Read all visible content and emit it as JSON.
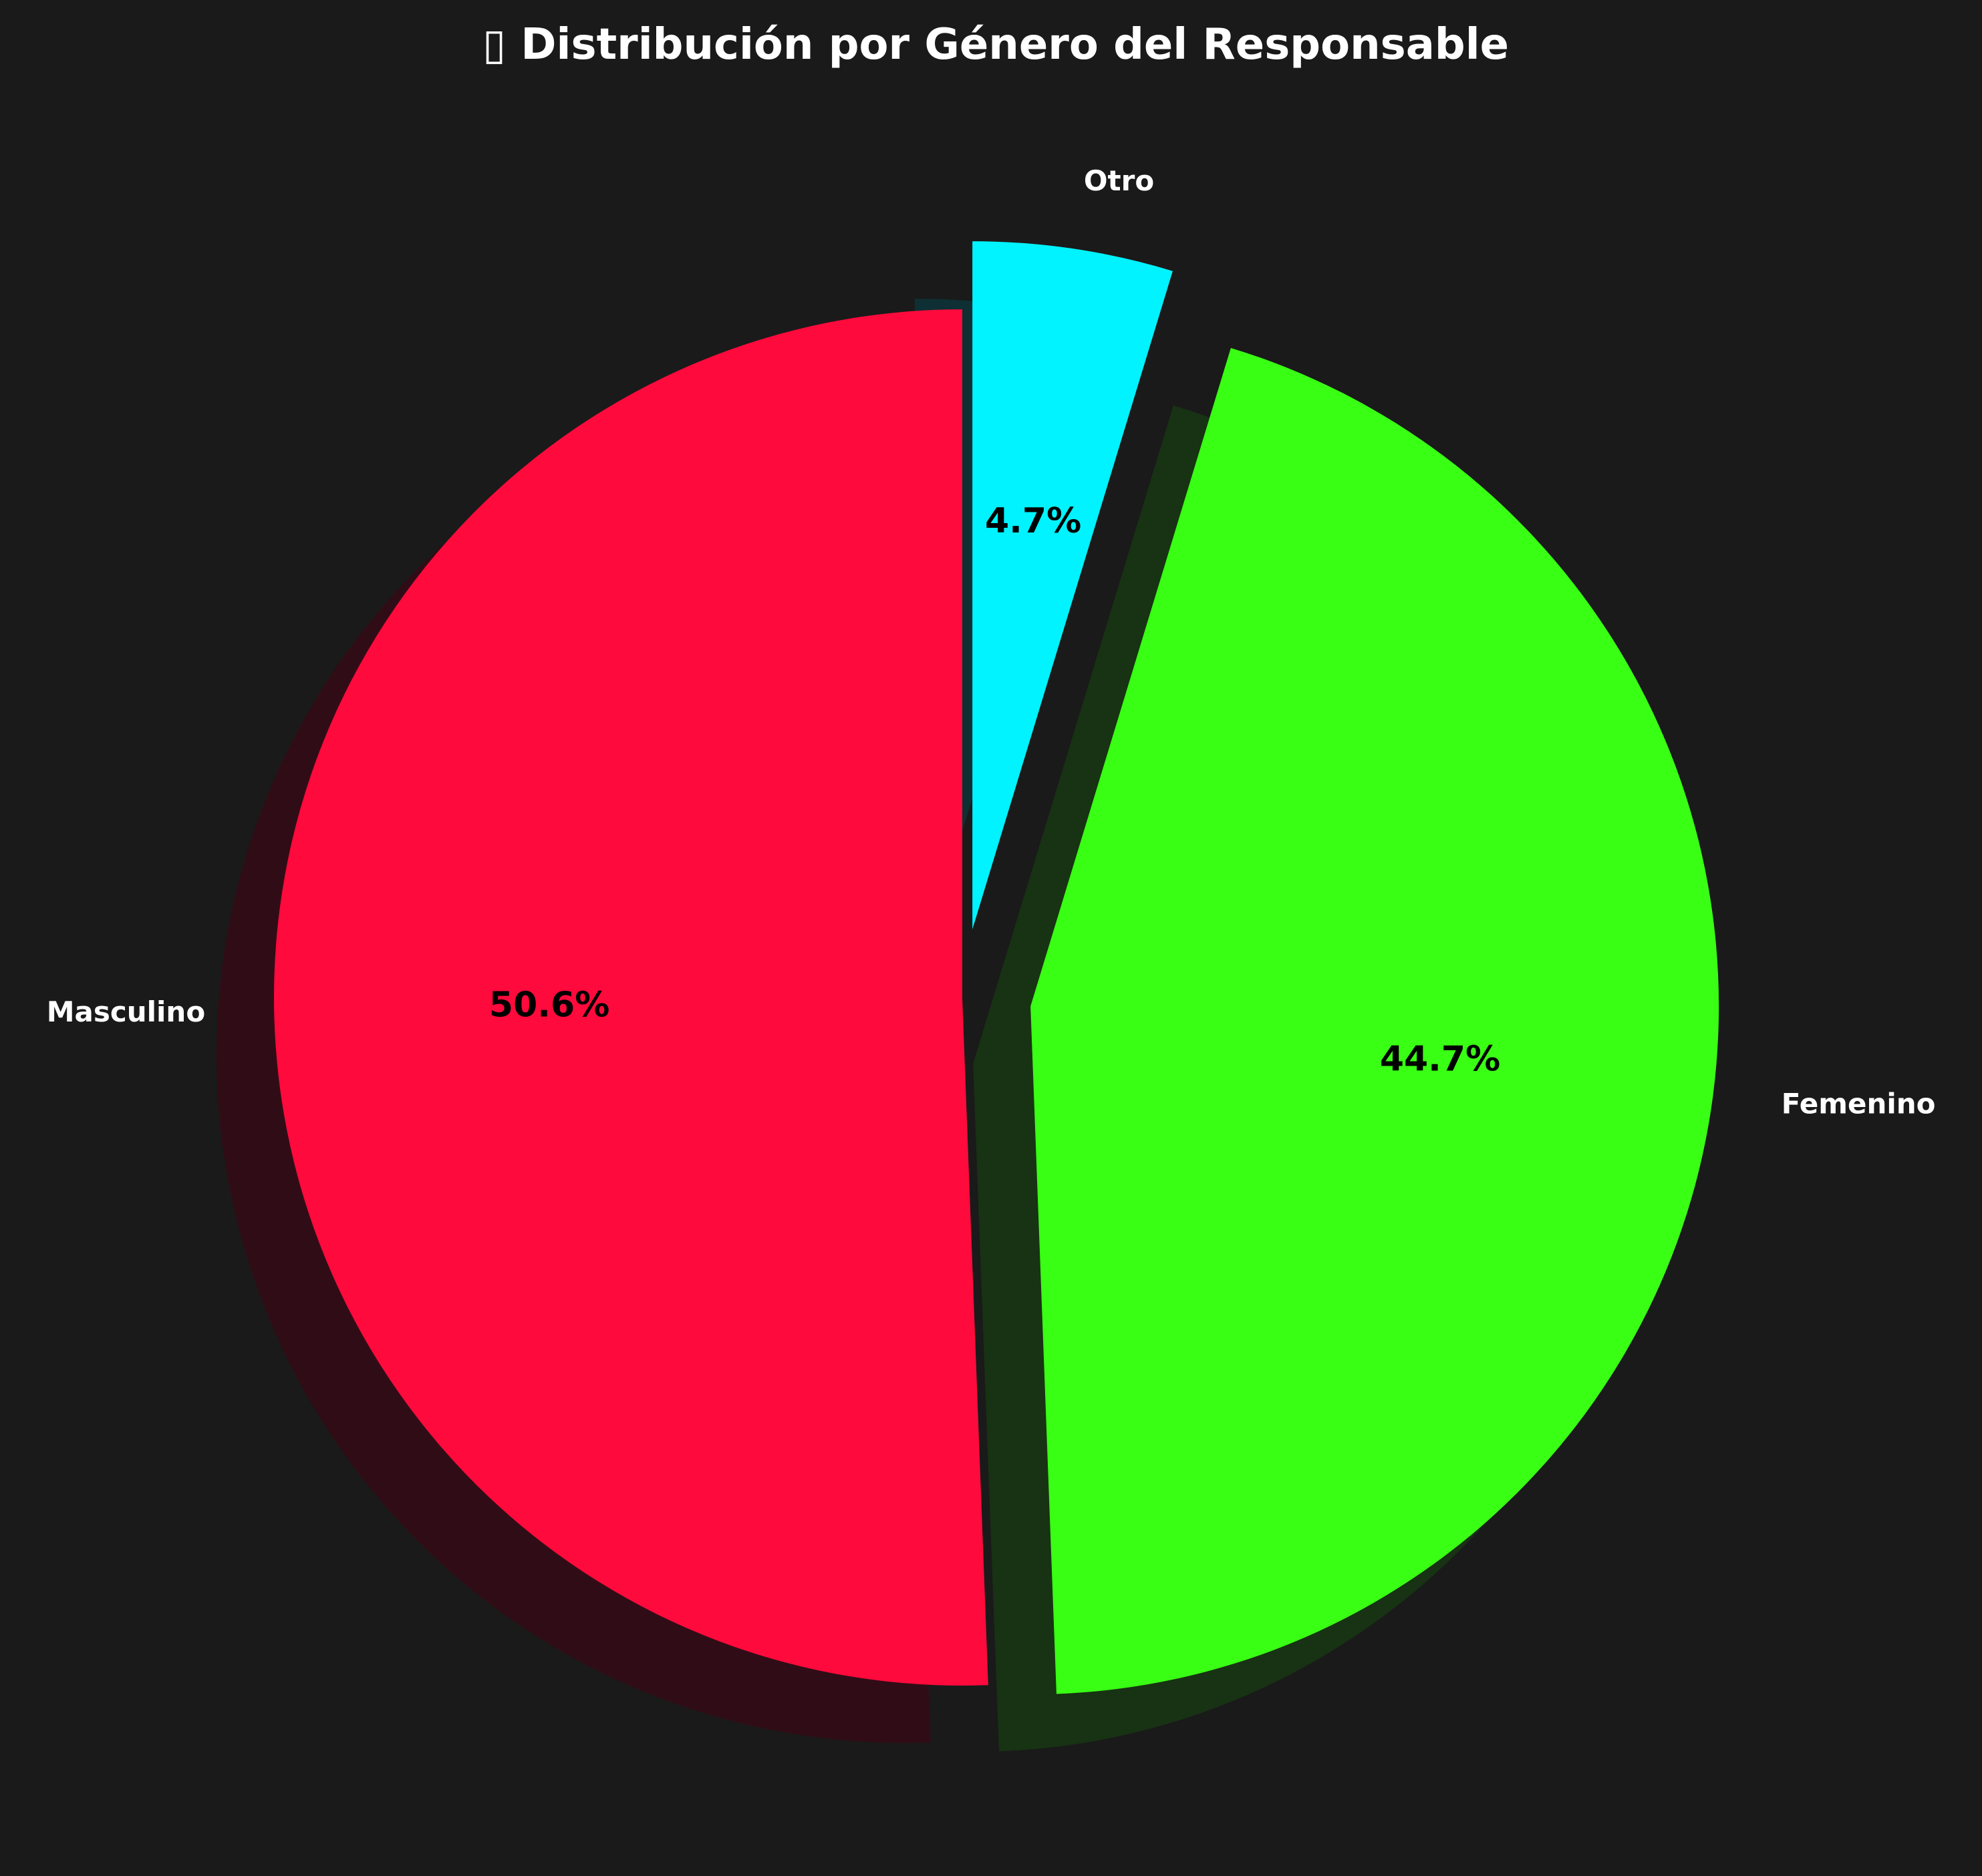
{
  "chart_data": {
    "type": "pie",
    "title": "▯ Distribución por Género del Responsable",
    "slices": [
      {
        "label": "Masculino",
        "value": 50.6,
        "display": "50.6%",
        "color": "#ff0a3c",
        "shadow_color": "#300d16",
        "exploded": false
      },
      {
        "label": "Femenino",
        "value": 44.7,
        "display": "44.7%",
        "color": "#39ff14",
        "shadow_color": "#183214",
        "exploded": true
      },
      {
        "label": "Otro",
        "value": 4.7,
        "display": "4.7%",
        "color": "#00f3ff",
        "shadow_color": "#0e3034",
        "exploded": true
      }
    ],
    "start_angle_deg": 90,
    "direction": "counterclockwise",
    "shadow": true,
    "background": "#1a1a1a"
  }
}
